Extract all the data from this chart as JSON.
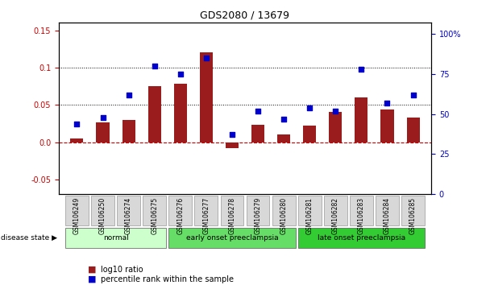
{
  "title": "GDS2080 / 13679",
  "samples": [
    "GSM106249",
    "GSM106250",
    "GSM106274",
    "GSM106275",
    "GSM106276",
    "GSM106277",
    "GSM106278",
    "GSM106279",
    "GSM106280",
    "GSM106281",
    "GSM106282",
    "GSM106283",
    "GSM106284",
    "GSM106285"
  ],
  "log10_ratio": [
    0.005,
    0.027,
    0.03,
    0.075,
    0.078,
    0.12,
    -0.008,
    0.023,
    0.01,
    0.022,
    0.04,
    0.06,
    0.044,
    0.033
  ],
  "percentile_rank": [
    44,
    48,
    62,
    80,
    75,
    85,
    37,
    52,
    47,
    54,
    52,
    78,
    57,
    62
  ],
  "bar_color": "#9b1c1c",
  "dot_color": "#0000cc",
  "groups": [
    {
      "label": "normal",
      "start": 0,
      "end": 4,
      "color": "#ccffcc"
    },
    {
      "label": "early onset preeclampsia",
      "start": 4,
      "end": 9,
      "color": "#66dd66"
    },
    {
      "label": "late onset preeclampsia",
      "start": 9,
      "end": 14,
      "color": "#33cc33"
    }
  ],
  "ylim_left": [
    -0.07,
    0.16
  ],
  "ylim_right": [
    0,
    106.67
  ],
  "yticks_left": [
    -0.05,
    0.0,
    0.05,
    0.1,
    0.15
  ],
  "yticks_right": [
    0,
    25,
    50,
    75,
    100
  ],
  "ytick_labels_right": [
    "0",
    "25",
    "50",
    "75",
    "100%"
  ],
  "hlines": [
    0.05,
    0.1
  ],
  "zero_line_color": "#cc0000",
  "dotted_line_color": "#000000",
  "background_color": "#ffffff",
  "plot_bg_color": "#ffffff",
  "legend_bar_label": "log10 ratio",
  "legend_dot_label": "percentile rank within the sample",
  "disease_state_label": "disease state"
}
